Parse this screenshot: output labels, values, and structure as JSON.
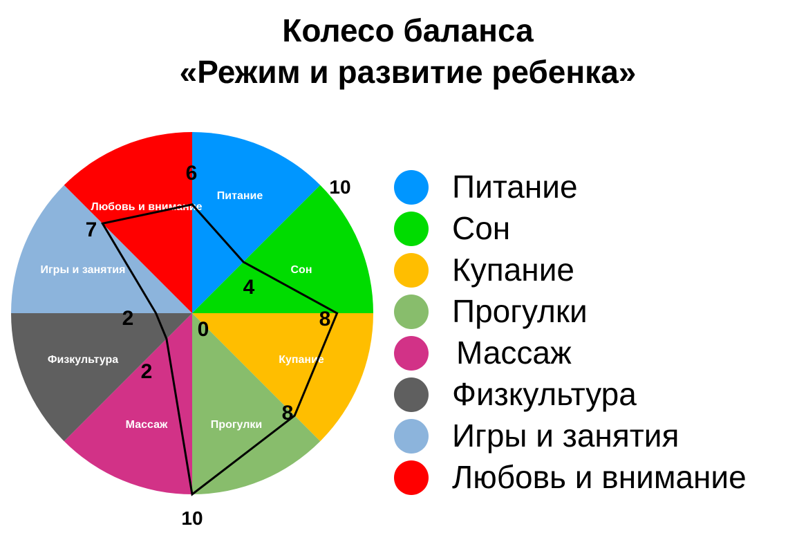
{
  "title": {
    "line1": "Колесо баланса",
    "line2": "«Режим и развитие ребенка»"
  },
  "chart_data": {
    "type": "radar-pie",
    "scale_max": 10,
    "scale_labels": [
      "0",
      "10",
      "10"
    ],
    "segments": [
      {
        "name": "Питание",
        "score": 4,
        "score_label": "4",
        "color": "#0096ff"
      },
      {
        "name": "Сон",
        "score": 8,
        "score_label": "8",
        "color": "#00dc00"
      },
      {
        "name": "Купание",
        "score": 8,
        "score_label": "8",
        "color": "#ffbe00"
      },
      {
        "name": "Прогулки",
        "score": 10,
        "score_label": "",
        "color": "#88bd6c"
      },
      {
        "name": "Массаж",
        "score": 2,
        "score_label": "2",
        "color": "#d23287"
      },
      {
        "name": "Физкультура",
        "score": 2,
        "score_label": "2",
        "color": "#5f5f5f"
      },
      {
        "name": "Игры и занятия",
        "score": 7,
        "score_label": "7",
        "color": "#8cb4dc"
      },
      {
        "name": "Любовь и внимание",
        "score": 6,
        "score_label": "6",
        "color": "#ff0000"
      }
    ]
  },
  "legend": [
    {
      "label": "Питание",
      "color": "#0096ff"
    },
    {
      "label": "Сон",
      "color": "#00dc00"
    },
    {
      "label": "Купание",
      "color": "#ffbe00"
    },
    {
      "label": "Прогулки",
      "color": "#88bd6c"
    },
    {
      "label": "Массаж",
      "color": "#d23287"
    },
    {
      "label": "Физкультура",
      "color": "#5f5f5f"
    },
    {
      "label": "Игры и занятия",
      "color": "#8cb4dc"
    },
    {
      "label": "Любовь и внимание",
      "color": "#ff0000"
    }
  ]
}
